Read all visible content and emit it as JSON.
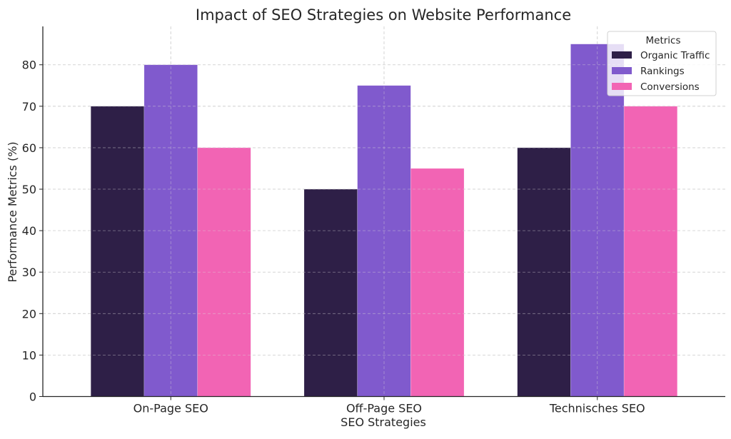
{
  "chart_data": {
    "type": "bar",
    "title": "Impact of SEO Strategies on Website Performance",
    "xlabel": "SEO Strategies",
    "ylabel": "Performance Metrics (%)",
    "categories": [
      "On-Page SEO",
      "Off-Page SEO",
      "Technisches SEO"
    ],
    "series": [
      {
        "name": "Organic Traffic",
        "values": [
          70,
          50,
          60
        ],
        "color": "#2e1f47"
      },
      {
        "name": "Rankings",
        "values": [
          80,
          75,
          85
        ],
        "color": "#805acd"
      },
      {
        "name": "Conversions",
        "values": [
          60,
          55,
          70
        ],
        "color": "#f264b4"
      }
    ],
    "ylim": [
      0,
      89.25
    ],
    "yticks": [
      0,
      10,
      20,
      30,
      40,
      50,
      60,
      70,
      80
    ],
    "grid": true,
    "legend": {
      "title": "Metrics",
      "placement": "top-right"
    }
  }
}
